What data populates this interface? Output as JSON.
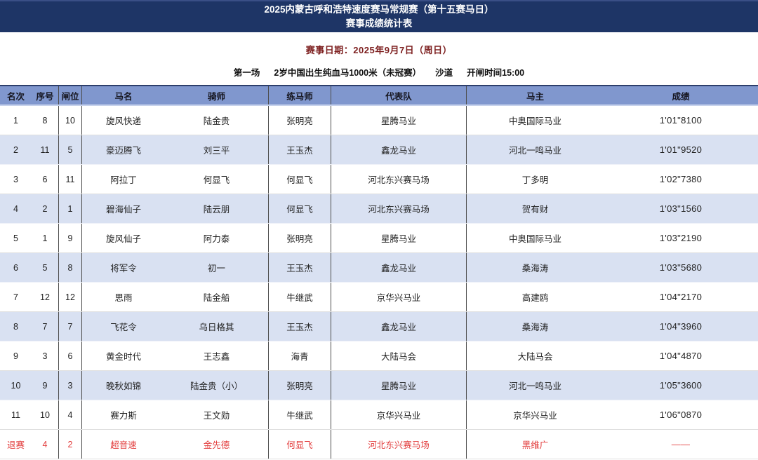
{
  "banner": {
    "line1": "2025内蒙古呼和浩特速度赛马常规赛（第十五赛马日）",
    "line2": "赛事成绩统计表"
  },
  "meta": {
    "date": "赛事日期：2025年9月7日（周日）",
    "race_segments": [
      "第一场",
      "2岁中国出生纯血马1000米（未冠赛）",
      "沙道",
      "开闸时间15:00"
    ]
  },
  "colors": {
    "banner_bg": "#1e3566",
    "header_bg": "#8097ce",
    "row_alt_bg": "#d9e1f2",
    "withdrawn_text": "#e23c3c",
    "date_text": "#7d1f1f"
  },
  "table": {
    "columns": [
      "名次",
      "序号",
      "闸位",
      "马名",
      "骑师",
      "练马师",
      "代表队",
      "马主",
      "成绩"
    ],
    "rows": [
      {
        "status": "normal",
        "cells": [
          "1",
          "8",
          "10",
          "旋风快递",
          "陆金贵",
          "张明亮",
          "星腾马业",
          "中奥国际马业",
          "1'01\"8100"
        ]
      },
      {
        "status": "normal",
        "cells": [
          "2",
          "11",
          "5",
          "豪迈腾飞",
          "刘三平",
          "王玉杰",
          "鑫龙马业",
          "河北一鸣马业",
          "1'01\"9520"
        ]
      },
      {
        "status": "normal",
        "cells": [
          "3",
          "6",
          "11",
          "阿拉丁",
          "何显飞",
          "何显飞",
          "河北东兴赛马场",
          "丁多明",
          "1'02\"7380"
        ]
      },
      {
        "status": "normal",
        "cells": [
          "4",
          "2",
          "1",
          "碧海仙子",
          "陆云朋",
          "何显飞",
          "河北东兴赛马场",
          "贺有财",
          "1'03\"1560"
        ]
      },
      {
        "status": "normal",
        "cells": [
          "5",
          "1",
          "9",
          "旋风仙子",
          "阿力泰",
          "张明亮",
          "星腾马业",
          "中奥国际马业",
          "1'03\"2190"
        ]
      },
      {
        "status": "normal",
        "cells": [
          "6",
          "5",
          "8",
          "将军令",
          "初一",
          "王玉杰",
          "鑫龙马业",
          "桑海涛",
          "1'03\"5680"
        ]
      },
      {
        "status": "normal",
        "cells": [
          "7",
          "12",
          "12",
          "思雨",
          "陆金船",
          "牛继武",
          "京华兴马业",
          "高建鸥",
          "1'04\"2170"
        ]
      },
      {
        "status": "normal",
        "cells": [
          "8",
          "7",
          "7",
          "飞花令",
          "乌日格其",
          "王玉杰",
          "鑫龙马业",
          "桑海涛",
          "1'04\"3960"
        ]
      },
      {
        "status": "normal",
        "cells": [
          "9",
          "3",
          "6",
          "黄金时代",
          "王志鑫",
          "海青",
          "大陆马会",
          "大陆马会",
          "1'04\"4870"
        ]
      },
      {
        "status": "normal",
        "cells": [
          "10",
          "9",
          "3",
          "晚秋如锦",
          "陆金贵（小）",
          "张明亮",
          "星腾马业",
          "河北一鸣马业",
          "1'05\"3600"
        ]
      },
      {
        "status": "normal",
        "cells": [
          "11",
          "10",
          "4",
          "赛力斯",
          "王文勋",
          "牛继武",
          "京华兴马业",
          "京华兴马业",
          "1'06\"0870"
        ]
      },
      {
        "status": "withdrawn",
        "cells": [
          "退赛",
          "4",
          "2",
          "超音速",
          "金先德",
          "何显飞",
          "河北东兴赛马场",
          "黑维广",
          "——"
        ]
      }
    ]
  }
}
